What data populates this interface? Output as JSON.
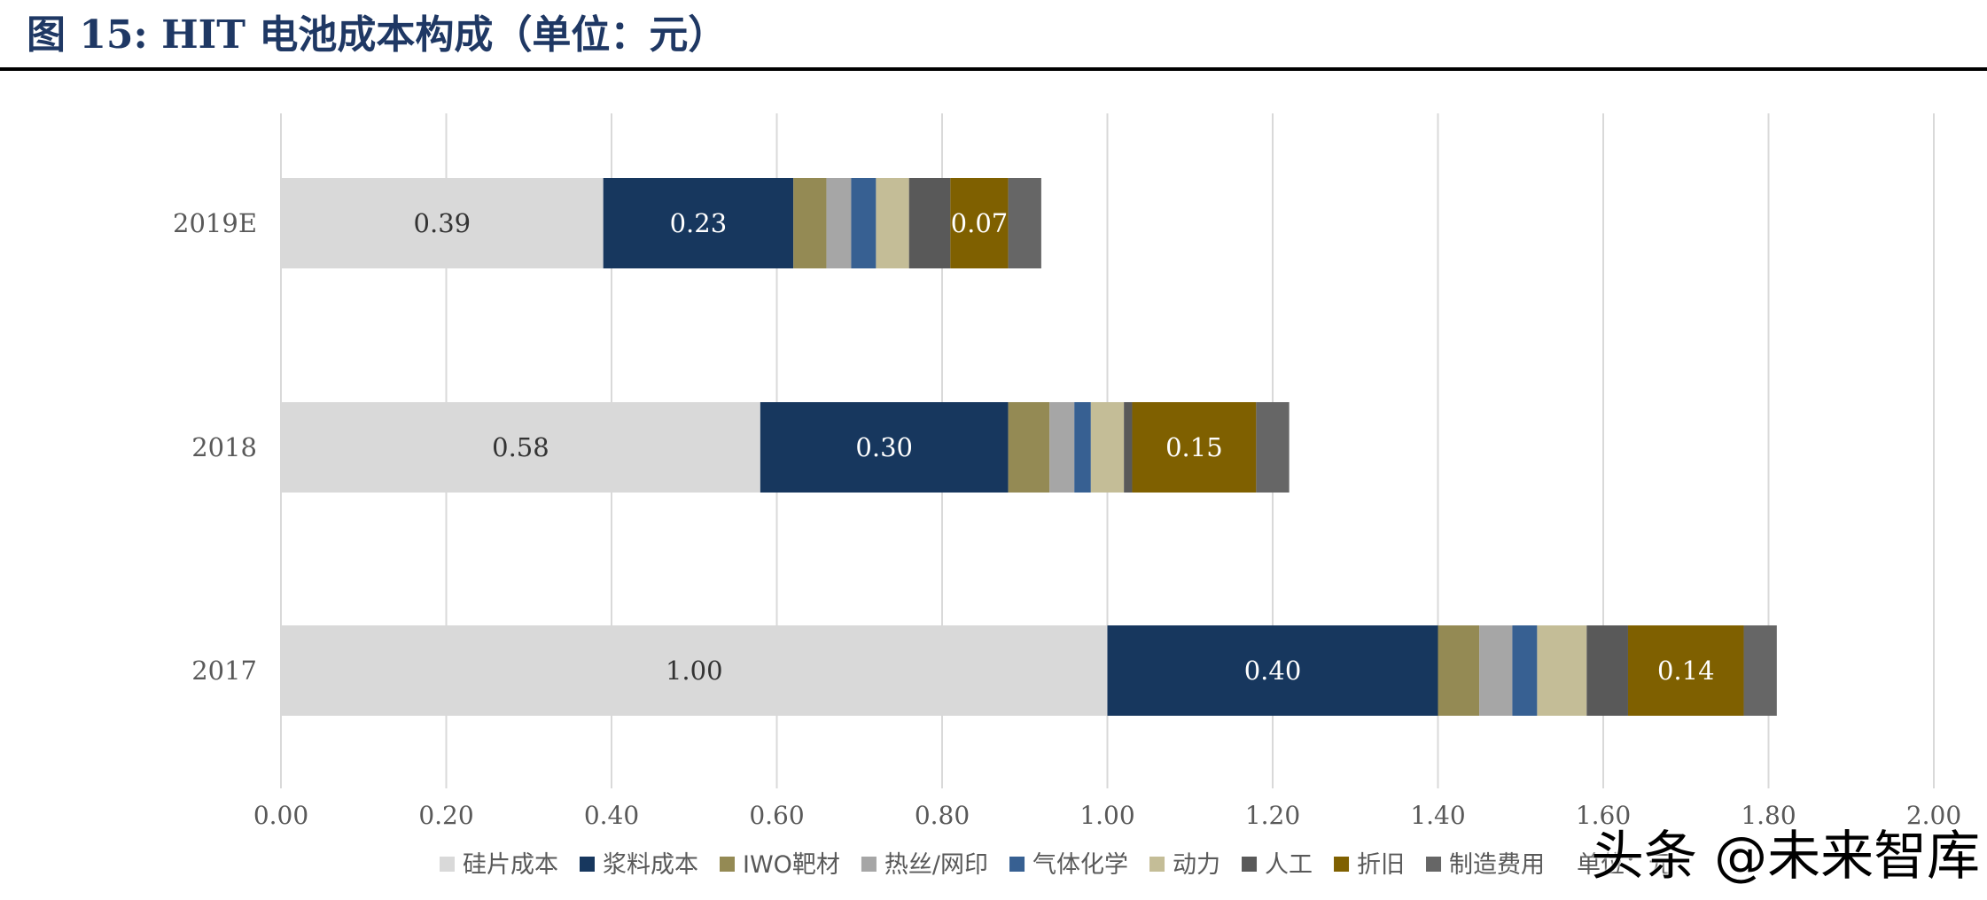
{
  "page_title": "图 15:  HIT 电池成本构成（单位：元）",
  "watermark": "头条 @未来智库",
  "chart_data": {
    "type": "bar",
    "orientation": "horizontal",
    "stacked": true,
    "title": "图 15:  HIT 电池成本构成（单位：元）",
    "categories": [
      "2019E",
      "2018",
      "2017"
    ],
    "xlim": [
      0,
      2.0
    ],
    "xticks": [
      "0.00",
      "0.20",
      "0.40",
      "0.60",
      "0.80",
      "1.00",
      "1.20",
      "1.40",
      "1.60",
      "1.80",
      "2.00"
    ],
    "grid": true,
    "legend_position": "bottom",
    "unit_note": "单位：元",
    "series": [
      {
        "name": "硅片成本",
        "color": "#d9d9d9",
        "label_color": "#333333",
        "values": [
          0.39,
          0.58,
          1.0
        ],
        "labels": [
          "0.39",
          "0.58",
          "1.00"
        ]
      },
      {
        "name": "浆料成本",
        "color": "#17375e",
        "label_color": "#ffffff",
        "values": [
          0.23,
          0.3,
          0.4
        ],
        "labels": [
          "0.23",
          "0.30",
          "0.40"
        ]
      },
      {
        "name": "IWO靶材",
        "color": "#948a54",
        "values": [
          0.04,
          0.05,
          0.05
        ]
      },
      {
        "name": "热丝/网印",
        "color": "#a6a6a6",
        "values": [
          0.03,
          0.03,
          0.04
        ]
      },
      {
        "name": "气体化学",
        "color": "#376092",
        "values": [
          0.03,
          0.02,
          0.03
        ]
      },
      {
        "name": "动力",
        "color": "#c4bd97",
        "values": [
          0.04,
          0.04,
          0.06
        ]
      },
      {
        "name": "人工",
        "color": "#595959",
        "values": [
          0.05,
          0.01,
          0.05
        ]
      },
      {
        "name": "折旧",
        "color": "#7f6000",
        "label_color": "#ffffff",
        "values": [
          0.07,
          0.15,
          0.14
        ],
        "labels": [
          "0.07",
          "0.15",
          "0.14"
        ]
      },
      {
        "name": "制造费用",
        "color": "#666666",
        "values": [
          0.04,
          0.04,
          0.04
        ]
      }
    ]
  }
}
